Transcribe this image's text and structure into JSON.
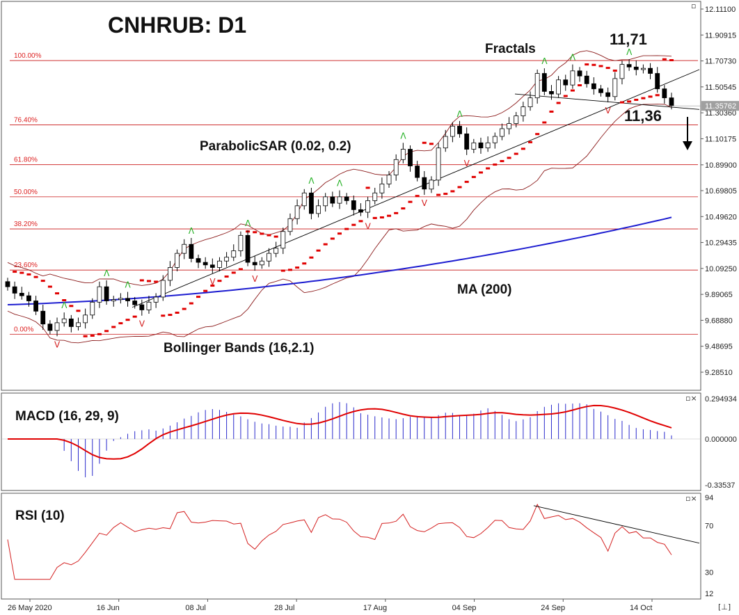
{
  "title": "CNHRUB: D1",
  "colors": {
    "background": "#ffffff",
    "bull_candle": "#ffffff",
    "bear_candle": "#000000",
    "sar": "#e00000",
    "ma200": "#1c1cd0",
    "bollinger": "#8b1a1a",
    "fib": "#c81414",
    "macd_hist": "#2a2acc",
    "macd_signal": "#e00000",
    "rsi": "#d42020",
    "fractal_up": "#22b022",
    "fractal_down": "#d42020",
    "current_price_label": "#a0a0a0"
  },
  "annotations": {
    "fractals": "Fractals",
    "level_high": "11,71",
    "level_low": "11,36",
    "parabolic_sar": "ParabolicSAR (0.02, 0.2)",
    "ma200": "MA (200)",
    "bollinger": "Bollinger Bands (16,2.1)",
    "macd": "MACD (16, 29, 9)",
    "rsi": "RSI (10)"
  },
  "window_buttons": {
    "main": "▫",
    "macd": "▫×",
    "rsi": "▫×",
    "corner": "[⊥]"
  },
  "chart_data": [
    {
      "type": "candlestick",
      "title": "CNHRUB: D1",
      "current_price": "11.35762",
      "ylim": [
        9.19,
        12.13
      ],
      "price_axis_ticks": [
        "12.11100",
        "11.90915",
        "11.70730",
        "11.50545",
        "11.30360",
        "11.10175",
        "10.89900",
        "10.69805",
        "10.49620",
        "10.29435",
        "10.09250",
        "9.89065",
        "9.68880",
        "9.48695",
        "9.28510"
      ],
      "date_ticks": [
        "26 May 2020",
        "16 Jun",
        "08 Jul",
        "28 Jul",
        "17 Aug",
        "04 Sep",
        "24 Sep",
        "14 Oct"
      ],
      "fibonacci_levels": [
        {
          "label": "100.00%",
          "value": 11.71
        },
        {
          "label": "76.40%",
          "value": 11.21
        },
        {
          "label": "61.80%",
          "value": 10.9
        },
        {
          "label": "50.00%",
          "value": 10.65
        },
        {
          "label": "38.20%",
          "value": 10.4
        },
        {
          "label": "23.60%",
          "value": 10.08
        },
        {
          "label": "0.00%",
          "value": 9.58
        }
      ],
      "candles_close": [
        9.95,
        9.9,
        9.88,
        9.84,
        9.76,
        9.66,
        9.61,
        9.67,
        9.7,
        9.64,
        9.67,
        9.73,
        9.83,
        9.95,
        9.84,
        9.85,
        9.86,
        9.84,
        9.81,
        9.77,
        9.83,
        9.87,
        10.0,
        10.1,
        10.21,
        10.28,
        10.17,
        10.14,
        10.12,
        10.1,
        10.15,
        10.18,
        10.23,
        10.35,
        10.14,
        10.12,
        10.15,
        10.21,
        10.25,
        10.38,
        10.48,
        10.58,
        10.68,
        10.52,
        10.58,
        10.65,
        10.6,
        10.65,
        10.62,
        10.55,
        10.53,
        10.62,
        10.68,
        10.75,
        10.82,
        10.94,
        11.02,
        10.89,
        10.8,
        10.71,
        10.78,
        11.03,
        11.12,
        11.2,
        11.14,
        11.02,
        11.07,
        11.03,
        11.07,
        11.12,
        11.18,
        11.22,
        11.28,
        11.35,
        11.42,
        11.61,
        11.47,
        11.45,
        11.56,
        11.52,
        11.63,
        11.59,
        11.53,
        11.49,
        11.46,
        11.43,
        11.57,
        11.68,
        11.66,
        11.64,
        11.65,
        11.61,
        11.49,
        11.42,
        11.36
      ],
      "ma200": {
        "start": 9.81,
        "end": 10.49
      },
      "fractals_up": [
        "11,71"
      ],
      "fractals_down": [
        "11,36"
      ]
    },
    {
      "type": "bar",
      "title": "MACD (16, 29, 9)",
      "ylim": [
        -0.33537,
        0.294934
      ],
      "ticks": [
        "0.294934",
        "0.000000",
        "-0.33537"
      ],
      "histogram_range": [
        -0.28,
        0.27
      ],
      "signal_final": 0.12
    },
    {
      "type": "line",
      "title": "RSI (10)",
      "ylim": [
        12,
        94
      ],
      "ticks": [
        "94",
        "70",
        "30",
        "12"
      ],
      "values_range": [
        24,
        88
      ],
      "last_value": 45
    }
  ]
}
